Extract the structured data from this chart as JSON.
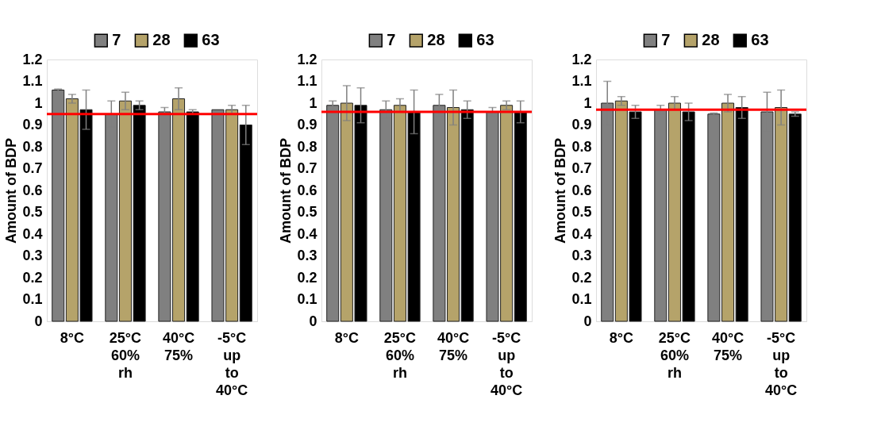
{
  "chart_data": [
    {
      "type": "bar",
      "ylabel": "Amount of BDP",
      "categories": [
        "8°C",
        "25°C 60% rh",
        "40°C 75%",
        "-5°C up to 40°C"
      ],
      "ylim": [
        0,
        1.2
      ],
      "yticks": [
        0,
        0.1,
        0.2,
        0.3,
        0.4,
        0.5,
        0.6,
        0.7,
        0.8,
        0.9,
        1,
        1.1,
        1.2
      ],
      "grid": false,
      "legend": "top",
      "series": [
        {
          "name": "7",
          "color": "#808080",
          "values": [
            1.06,
            0.95,
            0.96,
            0.97
          ],
          "errors": [
            0.005,
            0.06,
            0.02,
            null
          ]
        },
        {
          "name": "28",
          "color": "#b5a36a",
          "values": [
            1.02,
            1.01,
            1.02,
            0.97
          ],
          "errors": [
            0.02,
            0.04,
            0.05,
            0.02
          ]
        },
        {
          "name": "63",
          "color": "#000000",
          "values": [
            0.97,
            0.99,
            0.96,
            0.9
          ],
          "errors": [
            0.09,
            0.02,
            0.01,
            0.09
          ]
        }
      ],
      "ref_lines": [
        {
          "axis": "y",
          "value": 0.95,
          "color": "#ff0000"
        }
      ]
    },
    {
      "type": "bar",
      "ylabel": "Amount of BDP",
      "categories": [
        "8°C",
        "25°C 60% rh",
        "40°C 75%",
        "-5°C up to 40°C"
      ],
      "ylim": [
        0,
        1.2
      ],
      "yticks": [
        0,
        0.1,
        0.2,
        0.3,
        0.4,
        0.5,
        0.6,
        0.7,
        0.8,
        0.9,
        1,
        1.1,
        1.2
      ],
      "grid": false,
      "legend": "top",
      "series": [
        {
          "name": "7",
          "color": "#808080",
          "values": [
            0.99,
            0.97,
            0.99,
            0.96
          ],
          "errors": [
            0.02,
            0.04,
            0.05,
            0.02
          ]
        },
        {
          "name": "28",
          "color": "#b5a36a",
          "values": [
            1.0,
            0.99,
            0.98,
            0.99
          ],
          "errors": [
            0.08,
            0.03,
            0.08,
            0.02
          ]
        },
        {
          "name": "63",
          "color": "#000000",
          "values": [
            0.99,
            0.96,
            0.97,
            0.96
          ],
          "errors": [
            0.08,
            0.1,
            0.04,
            0.05
          ]
        }
      ],
      "ref_lines": [
        {
          "axis": "y",
          "value": 0.96,
          "color": "#ff0000"
        }
      ]
    },
    {
      "type": "bar",
      "ylabel": "Amount of BDP",
      "categories": [
        "8°C",
        "25°C 60% rh",
        "40°C 75%",
        "-5°C up to 40°C"
      ],
      "ylim": [
        0,
        1.2
      ],
      "yticks": [
        0,
        0.1,
        0.2,
        0.3,
        0.4,
        0.5,
        0.6,
        0.7,
        0.8,
        0.9,
        1,
        1.1,
        1.2
      ],
      "grid": false,
      "legend": "top",
      "series": [
        {
          "name": "7",
          "color": "#808080",
          "values": [
            1.0,
            0.97,
            0.95,
            0.96
          ],
          "errors": [
            0.1,
            0.02,
            0.005,
            0.09
          ]
        },
        {
          "name": "28",
          "color": "#b5a36a",
          "values": [
            1.01,
            1.0,
            1.0,
            0.98
          ],
          "errors": [
            0.02,
            0.03,
            0.04,
            0.08
          ]
        },
        {
          "name": "63",
          "color": "#000000",
          "values": [
            0.96,
            0.96,
            0.98,
            0.95
          ],
          "errors": [
            0.03,
            0.04,
            0.05,
            0.01
          ]
        }
      ],
      "ref_lines": [
        {
          "axis": "y",
          "value": 0.97,
          "color": "#ff0000"
        }
      ]
    }
  ]
}
